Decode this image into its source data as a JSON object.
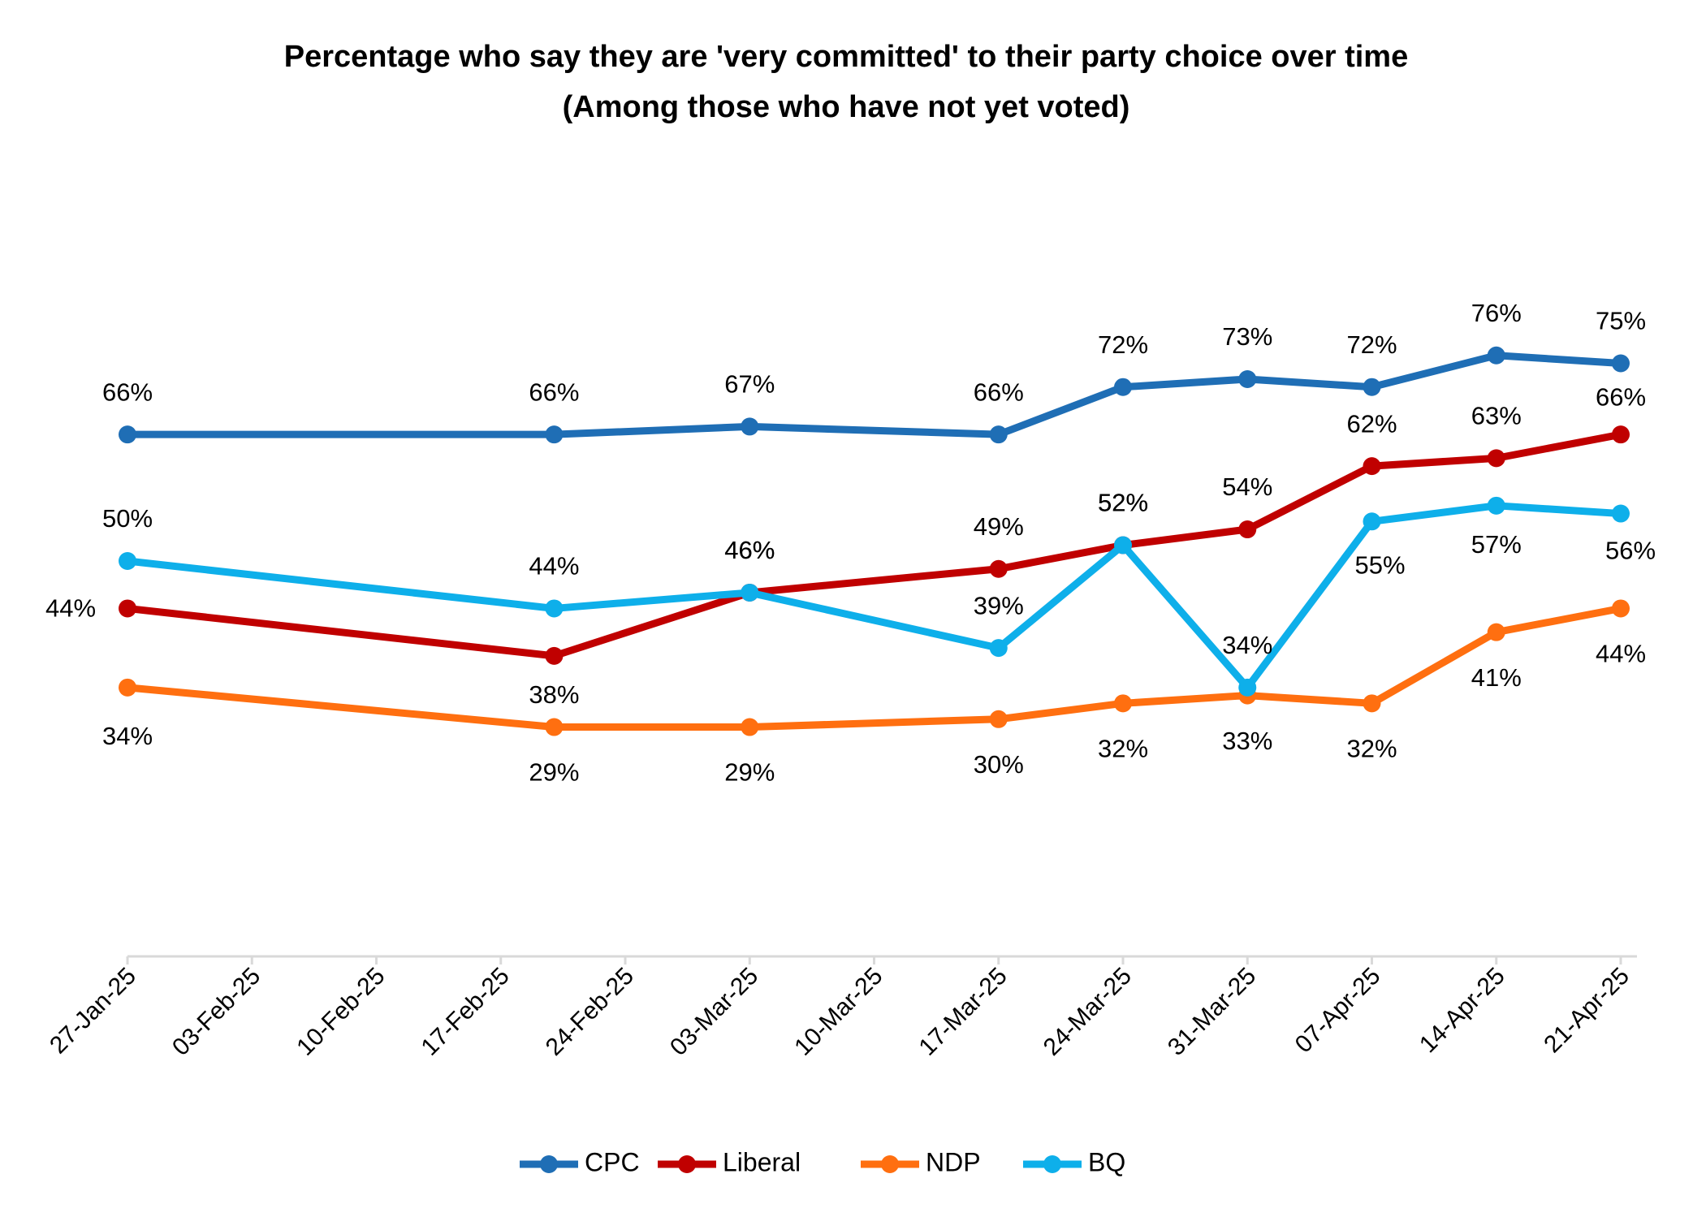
{
  "chart_data": {
    "type": "line",
    "title": "Percentage who say they are 'very committed' to their party choice over time",
    "subtitle": "(Among those who have not yet voted)",
    "xlabel": "",
    "ylabel": "",
    "x_ticks": [
      "27-Jan-25",
      "03-Feb-25",
      "10-Feb-25",
      "17-Feb-25",
      "24-Feb-25",
      "03-Mar-25",
      "10-Mar-25",
      "17-Mar-25",
      "24-Mar-25",
      "31-Mar-25",
      "07-Apr-25",
      "14-Apr-25",
      "21-Apr-25"
    ],
    "x": [
      "27-Jan-25",
      "20-Feb-25",
      "03-Mar-25",
      "17-Mar-25",
      "24-Mar-25",
      "31-Mar-25",
      "07-Apr-25",
      "14-Apr-25",
      "21-Apr-25"
    ],
    "ylim": [
      0,
      100
    ],
    "grid": false,
    "legend_position": "bottom",
    "series": [
      {
        "name": "CPC",
        "color": "#1F6EB5",
        "values": [
          66,
          66,
          67,
          66,
          72,
          73,
          72,
          76,
          75
        ],
        "labels": [
          "66%",
          "66%",
          "67%",
          "66%",
          "72%",
          "73%",
          "72%",
          "76%",
          "75%"
        ]
      },
      {
        "name": "Liberal",
        "color": "#C00000",
        "values": [
          44,
          38,
          46,
          49,
          52,
          54,
          62,
          63,
          66
        ],
        "labels": [
          "44%",
          "38%",
          "46%",
          "49%",
          "52%",
          "54%",
          "62%",
          "63%",
          "66%"
        ]
      },
      {
        "name": "NDP",
        "color": "#FF6F10",
        "values": [
          34,
          29,
          29,
          30,
          32,
          33,
          32,
          41,
          44
        ],
        "labels": [
          "34%",
          "29%",
          "29%",
          "30%",
          "32%",
          "33%",
          "32%",
          "41%",
          "44%"
        ]
      },
      {
        "name": "BQ",
        "color": "#0EAFEA",
        "values": [
          50,
          44,
          46,
          39,
          52,
          34,
          55,
          57,
          56
        ],
        "labels": [
          "50%",
          "44%",
          "46%",
          "39%",
          "52%",
          "34%",
          "55%",
          "57%",
          "56%"
        ]
      }
    ]
  }
}
